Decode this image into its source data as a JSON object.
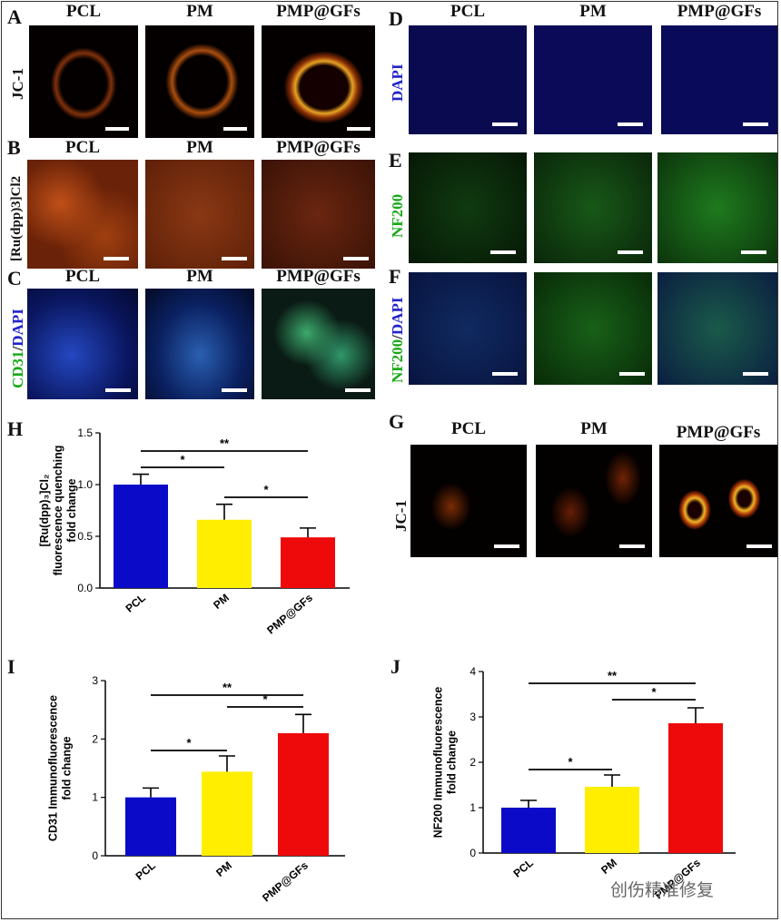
{
  "figure": {
    "panel_letters": {
      "A": "A",
      "B": "B",
      "C": "C",
      "D": "D",
      "E": "E",
      "F": "F",
      "G": "G",
      "H": "H",
      "I": "I",
      "J": "J"
    },
    "groups": [
      "PCL",
      "PM",
      "PMP@GFs"
    ],
    "stains": {
      "A": "JC-1",
      "B": "[Ru(dpp)3]Cl2",
      "C_green": "CD31",
      "C_sep": "/",
      "C_blue": "DAPI",
      "D": "DAPI",
      "E": "NF200",
      "F_green": "NF200",
      "F_sep": "/",
      "F_blue": "DAPI",
      "G": "JC-1"
    },
    "watermark": "创伤精准修复"
  },
  "chart_data": [
    {
      "id": "H",
      "type": "bar",
      "categories": [
        "PCL",
        "PM",
        "PMP@GFs"
      ],
      "values": [
        1.0,
        0.66,
        0.49
      ],
      "errors": [
        0.1,
        0.15,
        0.09
      ],
      "colors": [
        "#0a0ac8",
        "#ffee00",
        "#ee0a0a"
      ],
      "ylabel_lines": [
        "[Ru(dpp)₃]Cl₂",
        "fluorescence quenching",
        "fold change"
      ],
      "ylim": [
        0,
        1.5
      ],
      "yticks": [
        "0.0",
        "0.5",
        "1.0",
        "1.5"
      ],
      "ytick_values": [
        0,
        0.5,
        1.0,
        1.5
      ],
      "significance": [
        {
          "from": 0,
          "to": 2,
          "label": "**"
        },
        {
          "from": 0,
          "to": 1,
          "label": "*"
        },
        {
          "from": 1,
          "to": 2,
          "label": "*"
        }
      ]
    },
    {
      "id": "I",
      "type": "bar",
      "categories": [
        "PCL",
        "PM",
        "PMP@GFs"
      ],
      "values": [
        1.0,
        1.44,
        2.1
      ],
      "errors": [
        0.16,
        0.27,
        0.32
      ],
      "colors": [
        "#0a0ac8",
        "#ffee00",
        "#ee0a0a"
      ],
      "ylabel_lines": [
        "CD31 Immunofluorescence",
        "fold change"
      ],
      "ylim": [
        0,
        3
      ],
      "yticks": [
        "0",
        "1",
        "2",
        "3"
      ],
      "ytick_values": [
        0,
        1,
        2,
        3
      ],
      "significance": [
        {
          "from": 0,
          "to": 2,
          "label": "**"
        },
        {
          "from": 1,
          "to": 2,
          "label": "*"
        },
        {
          "from": 0,
          "to": 1,
          "label": "*"
        }
      ]
    },
    {
      "id": "J",
      "type": "bar",
      "categories": [
        "PCL",
        "PM",
        "PMP@GFs"
      ],
      "values": [
        1.0,
        1.46,
        2.86
      ],
      "errors": [
        0.16,
        0.26,
        0.34
      ],
      "colors": [
        "#0a0ac8",
        "#ffee00",
        "#ee0a0a"
      ],
      "ylabel_lines": [
        "NF200 Immunofluorescence",
        "fold change"
      ],
      "ylim": [
        0,
        4
      ],
      "yticks": [
        "0",
        "1",
        "2",
        "3",
        "4"
      ],
      "ytick_values": [
        0,
        1,
        2,
        3,
        4
      ],
      "significance": [
        {
          "from": 0,
          "to": 2,
          "label": "**"
        },
        {
          "from": 1,
          "to": 2,
          "label": "*"
        },
        {
          "from": 0,
          "to": 1,
          "label": "*"
        }
      ]
    }
  ]
}
